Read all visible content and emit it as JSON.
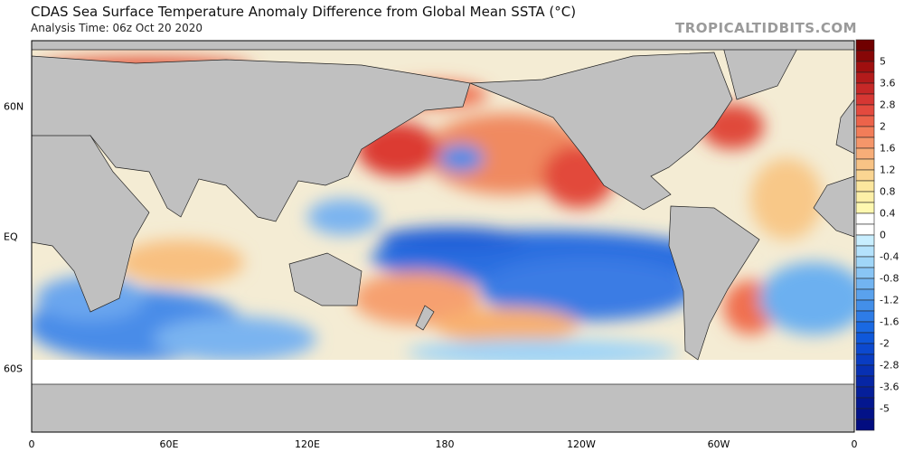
{
  "header": {
    "title": "CDAS Sea Surface Temperature Anomaly Difference from Global Mean SSTA (°C)",
    "analysis_time": "Analysis Time: 06z Oct 20 2020",
    "brand": "TROPICALTIDBITS.COM"
  },
  "map": {
    "longitude_labels": [
      "0",
      "60E",
      "120E",
      "180",
      "120W",
      "60W",
      "0"
    ],
    "latitude_labels": [
      "60N",
      "EQ",
      "60S"
    ],
    "land_color": "#c0c0c0",
    "sea_ice_color": "#ffffff"
  },
  "colorbar": {
    "labels": [
      "5",
      "3.6",
      "2.8",
      "2",
      "1.6",
      "1.2",
      "0.8",
      "0.4",
      "0",
      "-0.4",
      "-0.8",
      "-1.2",
      "-1.6",
      "-2",
      "-2.8",
      "-3.6",
      "-5"
    ],
    "warm_colors": [
      "#700000",
      "#9c0e0e",
      "#c22424",
      "#e0403a",
      "#f07050",
      "#f6a070",
      "#f8c888",
      "#fce8a0",
      "#fff8b0"
    ],
    "neutral_color": "#ffffff",
    "cool_colors": [
      "#c8eeff",
      "#9ed4f8",
      "#6cb0f0",
      "#3a88e8",
      "#1060e0",
      "#0a40c8",
      "#0628a8",
      "#041890",
      "#020c80"
    ]
  }
}
